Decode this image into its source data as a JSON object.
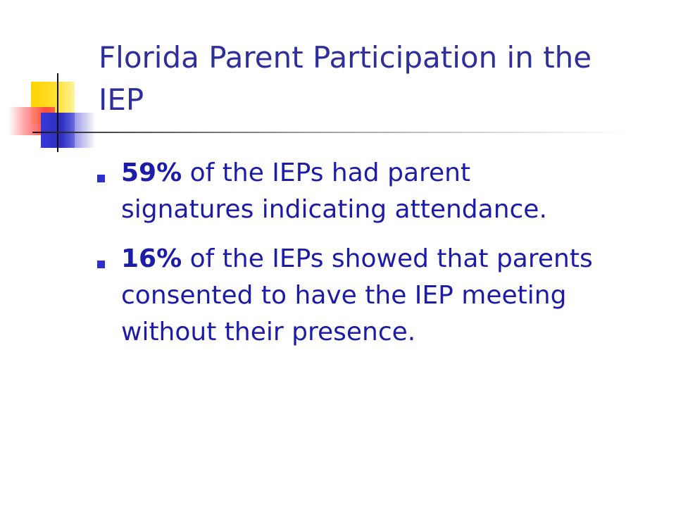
{
  "slide": {
    "title": "Florida Parent Participation in the IEP",
    "bullets": [
      {
        "stat": "59%",
        "text": " of the IEPs had parent signatures indicating attendance."
      },
      {
        "stat": "16%",
        "text": " of the IEPs showed that parents consented to have the IEP meeting without their presence."
      }
    ]
  },
  "colors": {
    "title": "#2e2e9c",
    "body": "#1c1ca8",
    "bullet_marker": "#2e2ec8",
    "accent_yellow": "#ffd400",
    "accent_red": "#ff3d3d",
    "accent_blue": "#2c2cc0"
  },
  "icons": {
    "bullet": "square-bullet-icon",
    "corner_logo": "color-blocks-logo"
  }
}
